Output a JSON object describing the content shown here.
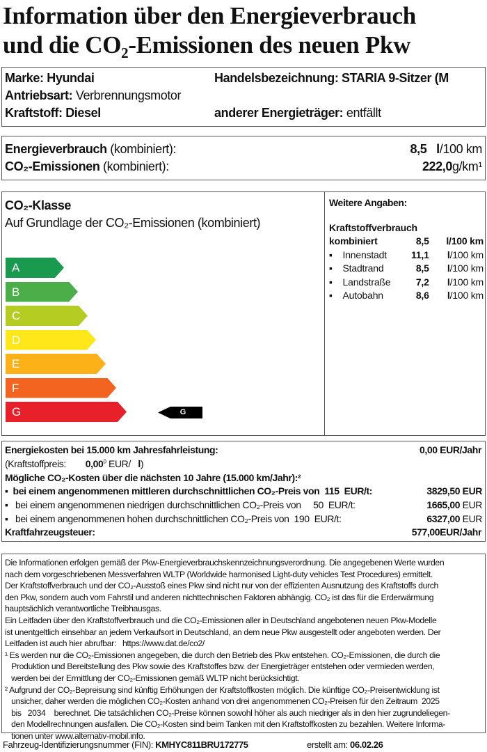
{
  "title": {
    "line1": "Information über den Energieverbrauch",
    "line2": "und die CO₂-Emissionen des neuen Pkw"
  },
  "vehicle": {
    "brand_label": "Marke:",
    "brand": "Hyundai",
    "trade_label": "Handelsbezeichnung:",
    "trade": "STARIA 9-Sitzer (M",
    "drive_label": "Antriebsart:",
    "drive": "Verbrennungsmotor",
    "fuel_label": "Kraftstoff:",
    "fuel": "Diesel",
    "other_label": "anderer Energieträger:",
    "other": "entfällt"
  },
  "consumption": {
    "energy_label": "Energieverbrauch",
    "energy_suffix": "(kombiniert):",
    "energy_value": "8,5",
    "energy_unit_l": "l",
    "energy_unit": "/100 km",
    "co2_label": "CO₂-Emissionen",
    "co2_suffix": "(kombiniert):",
    "co2_value": "222,0",
    "co2_unit": "g/km¹"
  },
  "co2class": {
    "heading": "CO₂-Klasse",
    "subheading": "Auf Grundlage der CO₂-Emissionen (kombiniert)",
    "classes": [
      {
        "letter": "A",
        "color": "#1a9a4f"
      },
      {
        "letter": "B",
        "color": "#4bae48"
      },
      {
        "letter": "C",
        "color": "#b5cc22"
      },
      {
        "letter": "D",
        "color": "#ffe71a"
      },
      {
        "letter": "E",
        "color": "#fbb117"
      },
      {
        "letter": "F",
        "color": "#f2641f"
      },
      {
        "letter": "G",
        "color": "#e8202a"
      }
    ],
    "current": "G"
  },
  "weitere": {
    "heading": "Weitere Angaben:",
    "sub": "Kraftstoffverbrauch",
    "combined_label": "kombiniert",
    "combined_value": "8,5",
    "combined_unit": "l/100 km",
    "rows": [
      {
        "label": "Innenstadt",
        "value": "11,1",
        "unit_l": "l",
        "unit": "/100 km"
      },
      {
        "label": "Stadtrand",
        "value": "8,5",
        "unit_l": "l",
        "unit": "/100 km"
      },
      {
        "label": "Landstraße",
        "value": "7,2",
        "unit_l": "l",
        "unit": "/100 km"
      },
      {
        "label": "Autobahn",
        "value": "8,6",
        "unit_l": "l",
        "unit": "/100 km"
      }
    ]
  },
  "costs": {
    "energy_label": "Energiekosten bei 15.000 km Jahresfahrleistung:",
    "energy_value": "0,00 EUR/Jahr",
    "price_label": "(Kraftstoffpreis:",
    "price_value": "0,00",
    "price_sup": "0",
    "price_unit": "EUR/",
    "price_l": "l",
    "price_close": ")",
    "co2_heading": "Mögliche CO₂-Kosten über die nächsten 10 Jahre (15.000 km/Jahr):²",
    "mid": {
      "text": "bei einem angenommenen mittleren durchschnittlichen CO₂-Preis von",
      "price": "115",
      "unit": "EUR/t:",
      "value": "3829,50 EUR"
    },
    "low": {
      "text": "bei einem angenommenen niedrigen durchschnittlichen CO₂-Preis von",
      "price": "50",
      "unit": "EUR/t:",
      "value": "1665,00",
      "cur": "EUR"
    },
    "high": {
      "text": "bei einem angenommenen hohen durchschnittlichen CO₂-Preis von",
      "price": "190",
      "unit": "EUR/t:",
      "value": "6327,00",
      "cur": "EUR"
    },
    "tax_label": "Kraftfahrzeugsteuer:",
    "tax_value": "577,00",
    "tax_unit": "EUR/Jahr"
  },
  "legal": [
    "Die Informationen erfolgen gemäß der Pkw-Energieverbrauchskennzeichnungsverordnung. Die angegebenen Werte wurden",
    "nach dem vorgeschriebenen Messverfahren WLTP (Worldwide harmonised Light-duty vehicles Test Procedures) ermittelt.",
    "Der Kraftstoffverbrauch und der CO₂-Ausstoß eines Pkw sind nicht nur von der effizienten Ausnutzung des Kraftstoffs durch",
    "den Pkw, sondern auch vom Fahrstil und anderen nichttechnischen Faktoren abhängig. CO₂ ist das für die Erderwärmung",
    "hauptsächlich verantwortliche Treibhausgas.",
    "Ein Leitfaden über den Kraftstoffverbrauch und die CO₂-Emissionen aller in Deutschland angebotenen neuen Pkw-Modelle",
    "ist unentgeltlich einsehbar an jedem Verkaufsort in Deutschland, an dem neue Pkw ausgestellt oder angeboten werden. Der",
    "Leitfaden ist auch hier abrufbar:   https://www.dat.de/co2/",
    "¹ Es werden nur die CO₂-Emissionen angegeben, die durch den Betrieb des Pkw entstehen. CO₂-Emissionen, die durch die",
    "   Produktion und Bereitstellung des Pkw sowie des Kraftstoffes bzw. der Energieträger entstehen oder vermieden werden,",
    "   werden bei der Ermittlung der CO₂-Emissionen gemäß WLTP nicht berücksichtigt.",
    "² Aufgrund der CO₂-Bepreisung sind künftig Erhöhungen der Kraftstoffkosten möglich. Die künftige CO₂-Preisentwicklung ist",
    "   unsicher, daher werden die möglichen CO₂-Kosten anhand von drei angenommenen CO₂-Preisen für den Zeitraum  2025",
    "   bis   2034    berechnet. Die tatsächlichen CO₂-Preise können sowohl höher als auch niedriger als in den hier zugrundeliegen-",
    "   den Modellrechnungen ausfallen. Die CO₂-Kosten sind beim Tanken mit den Kraftstoffkosten zu bezahlen. Weitere Informa-",
    "   tionen unter www.alternativ-mobil.info."
  ],
  "footer": {
    "fin_label": "Fahrzeug-Identifizierungsnummer (FIN):",
    "fin": "KMHYC811BRU172775",
    "date_label": "erstellt am:",
    "date": "06.02.26"
  }
}
